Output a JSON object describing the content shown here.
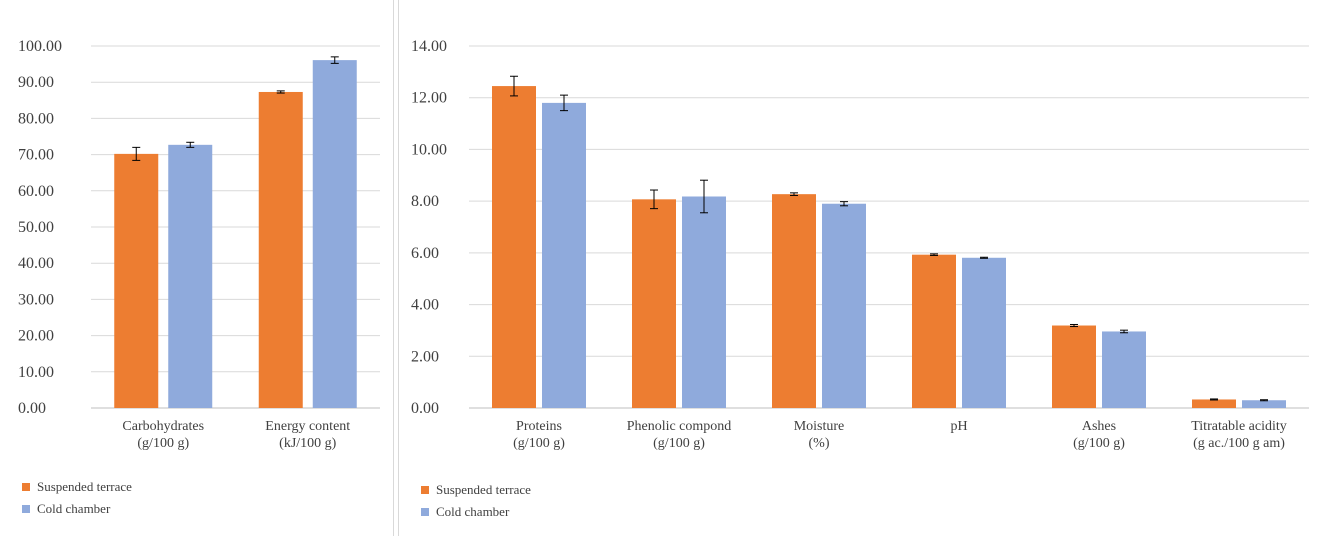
{
  "colors": {
    "suspended": "#ed7d31",
    "cold": "#8faadc",
    "grid": "#d9d9d9",
    "axis": "#bfbfbf",
    "text": "#404040"
  },
  "legend": {
    "series1": "Suspended terrace",
    "series2": "Cold chamber"
  },
  "chart_data": [
    {
      "type": "bar",
      "categories": [
        [
          "Carbohydrates",
          "(g/100 g)"
        ],
        [
          "Energy content",
          "(kJ/100 g)"
        ]
      ],
      "series": [
        {
          "name": "Suspended terrace",
          "values": [
            70.2,
            87.3
          ],
          "errors": [
            1.8,
            0.3
          ]
        },
        {
          "name": "Cold chamber",
          "values": [
            72.7,
            96.1
          ],
          "errors": [
            0.7,
            0.9
          ]
        }
      ],
      "ylim": [
        0,
        100
      ],
      "ytick_step": 10,
      "ytick_labels": [
        "0.00",
        "10.00",
        "20.00",
        "30.00",
        "40.00",
        "50.00",
        "60.00",
        "70.00",
        "80.00",
        "90.00",
        "100.00"
      ],
      "grid": true,
      "legend_position": "bottom-left"
    },
    {
      "type": "bar",
      "categories": [
        [
          "Proteins",
          "(g/100 g)"
        ],
        [
          "Phenolic compond",
          "(g/100 g)"
        ],
        [
          "Moisture",
          "(%)"
        ],
        [
          "pH"
        ],
        [
          "Ashes",
          "(g/100 g)"
        ],
        [
          "Titratable acidity",
          "(g ac./100 g am)"
        ]
      ],
      "series": [
        {
          "name": "Suspended terrace",
          "values": [
            12.45,
            8.07,
            8.27,
            5.93,
            3.19,
            0.33
          ],
          "errors": [
            0.38,
            0.36,
            0.05,
            0.03,
            0.04,
            0.02
          ]
        },
        {
          "name": "Cold chamber",
          "values": [
            11.8,
            8.18,
            7.9,
            5.81,
            2.96,
            0.3
          ],
          "errors": [
            0.3,
            0.63,
            0.08,
            0.02,
            0.05,
            0.02
          ]
        }
      ],
      "ylim": [
        0,
        14
      ],
      "ytick_step": 2,
      "ytick_labels": [
        "0.00",
        "2.00",
        "4.00",
        "6.00",
        "8.00",
        "10.00",
        "12.00",
        "14.00"
      ],
      "grid": true,
      "legend_position": "bottom-left"
    }
  ]
}
